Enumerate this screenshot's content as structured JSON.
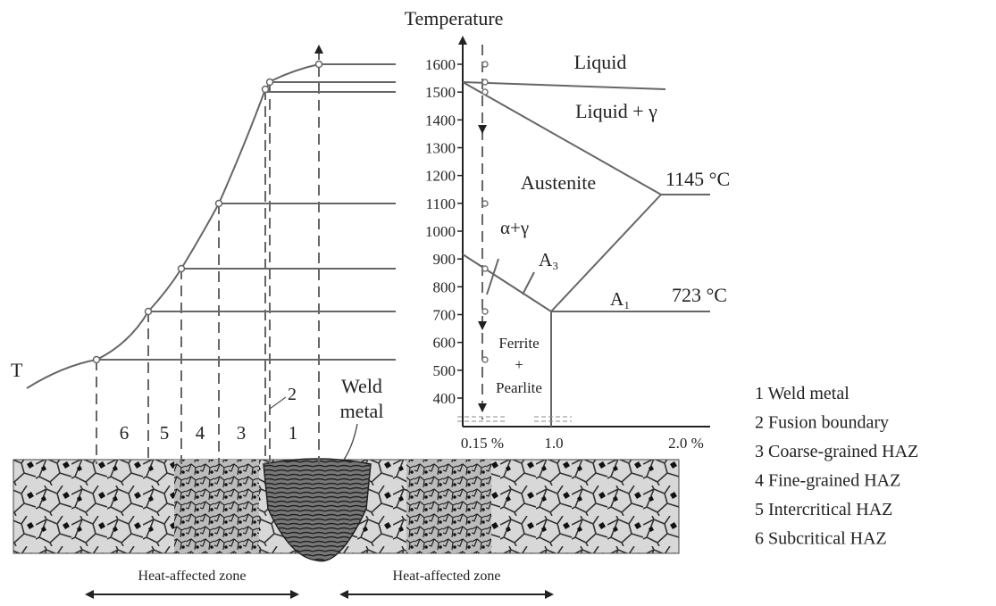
{
  "axis": {
    "title": "Temperature",
    "ticks": [
      "1600",
      "1500",
      "1400",
      "1300",
      "1200",
      "1100",
      "1000",
      "900",
      "800",
      "700",
      "600",
      "500",
      "400"
    ],
    "x_labels": [
      "0.15 %",
      "1.0",
      "2.0 %"
    ]
  },
  "phases": {
    "liquid": "Liquid",
    "liquid_gamma": "Liquid + γ",
    "austenite": "Austenite",
    "alpha_gamma": "α+γ",
    "a3": "A₃",
    "a1": "A₁",
    "ferrite_pearlite": [
      "Ferrite",
      "+",
      "Pearlite"
    ]
  },
  "temperatures": {
    "eutectic": "1145 °C",
    "eutectoid": "723 °C"
  },
  "curve_label": "T",
  "fusion_marker": "2",
  "weld_label": [
    "Weld",
    "metal"
  ],
  "zones": [
    "6",
    "5",
    "4",
    "3",
    "1"
  ],
  "legend": [
    "1 Weld metal",
    "2 Fusion boundary",
    "3 Coarse-grained HAZ",
    "4 Fine-grained HAZ",
    "5 Intercritical HAZ",
    "6 Subcritical HAZ"
  ],
  "haz_labels": [
    "Heat-affected zone",
    "Heat-affected zone"
  ]
}
